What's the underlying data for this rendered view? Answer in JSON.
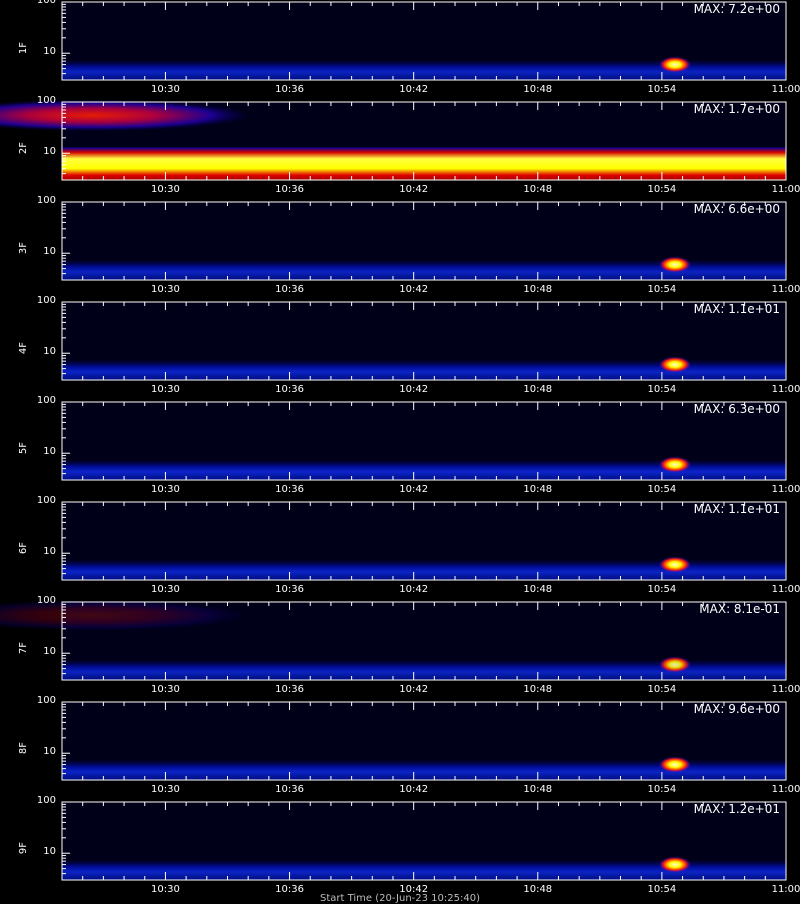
{
  "chart_data": [
    {
      "type": "heatmap",
      "ylabel": "1F",
      "max_label": "MAX: 7.2e+00",
      "yticks": [
        "100",
        "10"
      ],
      "x_ticks": [
        "10:30",
        "10:36",
        "10:42",
        "10:48",
        "10:54",
        "11:00"
      ],
      "yscale": "log",
      "background_level": 0.35,
      "band_level": 0.45,
      "hotspot": {
        "time": "10:54",
        "intensity": 1.0
      },
      "low_freq_blob": 0
    },
    {
      "type": "heatmap",
      "ylabel": "2F",
      "max_label": "MAX: 1.7e+00",
      "yticks": [
        "100",
        "10"
      ],
      "x_ticks": [
        "10:30",
        "10:36",
        "10:42",
        "10:48",
        "10:54",
        "11:00"
      ],
      "yscale": "log",
      "background_level": 0.25,
      "band_level": 1.0,
      "hotspot": {
        "time": "",
        "intensity": 0
      },
      "low_freq_blob": 0.9
    },
    {
      "type": "heatmap",
      "ylabel": "3F",
      "max_label": "MAX: 6.6e+00",
      "yticks": [
        "100",
        "10"
      ],
      "x_ticks": [
        "10:30",
        "10:36",
        "10:42",
        "10:48",
        "10:54",
        "11:00"
      ],
      "yscale": "log",
      "background_level": 0.32,
      "band_level": 0.45,
      "hotspot": {
        "time": "10:54",
        "intensity": 1.0
      },
      "low_freq_blob": 0
    },
    {
      "type": "heatmap",
      "ylabel": "4F",
      "max_label": "MAX: 1.1e+01",
      "yticks": [
        "100",
        "10"
      ],
      "x_ticks": [
        "10:30",
        "10:36",
        "10:42",
        "10:48",
        "10:54",
        "11:00"
      ],
      "yscale": "log",
      "background_level": 0.3,
      "band_level": 0.5,
      "hotspot": {
        "time": "10:54",
        "intensity": 1.0
      },
      "low_freq_blob": 0
    },
    {
      "type": "heatmap",
      "ylabel": "5F",
      "max_label": "MAX: 6.3e+00",
      "yticks": [
        "100",
        "10"
      ],
      "x_ticks": [
        "10:30",
        "10:36",
        "10:42",
        "10:48",
        "10:54",
        "11:00"
      ],
      "yscale": "log",
      "background_level": 0.32,
      "band_level": 0.55,
      "hotspot": {
        "time": "10:54",
        "intensity": 1.0
      },
      "low_freq_blob": 0
    },
    {
      "type": "heatmap",
      "ylabel": "6F",
      "max_label": "MAX: 1.1e+01",
      "yticks": [
        "100",
        "10"
      ],
      "x_ticks": [
        "10:30",
        "10:36",
        "10:42",
        "10:48",
        "10:54",
        "11:00"
      ],
      "yscale": "log",
      "background_level": 0.28,
      "band_level": 0.5,
      "hotspot": {
        "time": "10:54",
        "intensity": 1.0
      },
      "low_freq_blob": 0
    },
    {
      "type": "heatmap",
      "ylabel": "7F",
      "max_label": "MAX: 8.1e-01",
      "yticks": [
        "100",
        "10"
      ],
      "x_ticks": [
        "10:30",
        "10:36",
        "10:42",
        "10:48",
        "10:54",
        "11:00"
      ],
      "yscale": "log",
      "background_level": 0.34,
      "band_level": 0.45,
      "hotspot": {
        "time": "10:54",
        "intensity": 0.9
      },
      "low_freq_blob": 0.25
    },
    {
      "type": "heatmap",
      "ylabel": "8F",
      "max_label": "MAX: 9.6e+00",
      "yticks": [
        "100",
        "10"
      ],
      "x_ticks": [
        "10:30",
        "10:36",
        "10:42",
        "10:48",
        "10:54",
        "11:00"
      ],
      "yscale": "log",
      "background_level": 0.3,
      "band_level": 0.5,
      "hotspot": {
        "time": "10:54",
        "intensity": 1.0
      },
      "low_freq_blob": 0
    },
    {
      "type": "heatmap",
      "ylabel": "9F",
      "max_label": "MAX: 1.2e+01",
      "yticks": [
        "100",
        "10"
      ],
      "x_ticks": [
        "10:30",
        "10:36",
        "10:42",
        "10:48",
        "10:54",
        "11:00"
      ],
      "yscale": "log",
      "background_level": 0.28,
      "band_level": 0.5,
      "hotspot": {
        "time": "10:54",
        "intensity": 1.0
      },
      "low_freq_blob": 0
    }
  ],
  "x_range": [
    "10:25",
    "11:00"
  ],
  "footer_text": "Start Time (20-Jun-23 10:25:40)",
  "colors": {
    "background": "#000000",
    "axis": "#ffffff",
    "low": "#0000c0",
    "mid": "#e00000",
    "high": "#ffff00"
  }
}
